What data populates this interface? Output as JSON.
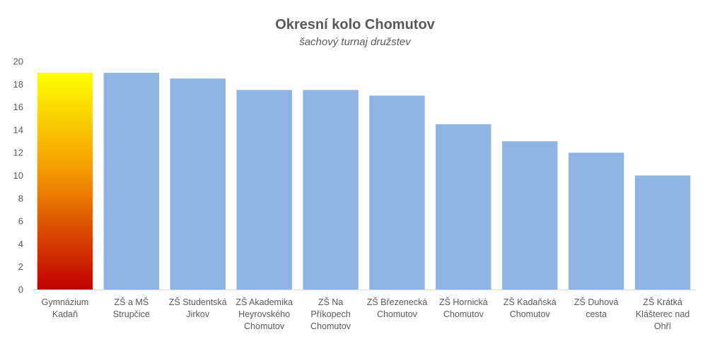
{
  "chart_data": {
    "type": "bar",
    "title": "Okresní kolo Chomutov",
    "subtitle": "šachový turnaj družstev",
    "xlabel": "",
    "ylabel": "",
    "ylim": [
      0,
      20
    ],
    "yticks": [
      0,
      2,
      4,
      6,
      8,
      10,
      12,
      14,
      16,
      18,
      20
    ],
    "grid": false,
    "categories": [
      [
        "Gymnázium",
        "Kadaň"
      ],
      [
        "ZŠ a MŠ",
        "Strupčice"
      ],
      [
        "ZŠ Studentská",
        "Jirkov"
      ],
      [
        "ZŠ Akademika",
        "Heyrovského",
        "Chomutov"
      ],
      [
        "ZŠ Na",
        "Příkopech",
        "Chomutov"
      ],
      [
        "ZŠ Březenecká",
        "Chomutov"
      ],
      [
        "ZŠ Hornická",
        "Chomutov"
      ],
      [
        "ZŠ Kadaňská",
        "Chomutov"
      ],
      [
        "ZŠ Duhová",
        "cesta"
      ],
      [
        "ZŠ Krátká",
        "Klášterec nad",
        "Ohří"
      ]
    ],
    "values": [
      19,
      19,
      18.5,
      17.5,
      17.5,
      17,
      14.5,
      13,
      12,
      10
    ],
    "colors": {
      "bar": "#8eb4e3",
      "highlight_top": "#ffff00",
      "highlight_mid": "#f59a00",
      "highlight_bottom": "#c00000",
      "axis": "#d9d9d9",
      "text": "#595959"
    }
  }
}
